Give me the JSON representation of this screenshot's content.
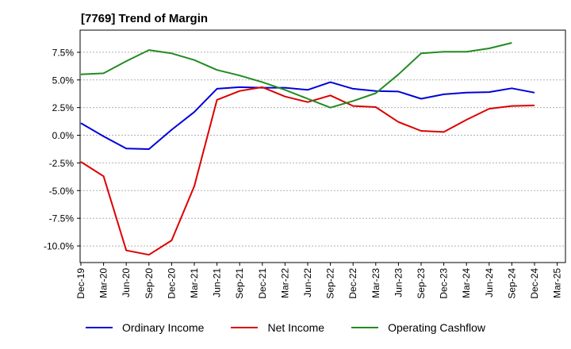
{
  "chart_data": {
    "type": "line",
    "title": "[7769]  Trend of Margin",
    "xlabel": "",
    "ylabel": "",
    "categories": [
      "Dec-19",
      "Mar-20",
      "Jun-20",
      "Sep-20",
      "Dec-20",
      "Mar-21",
      "Jun-21",
      "Sep-21",
      "Dec-21",
      "Mar-22",
      "Jun-22",
      "Sep-22",
      "Dec-22",
      "Mar-23",
      "Jun-23",
      "Sep-23",
      "Dec-23",
      "Mar-24",
      "Jun-24",
      "Sep-24",
      "Dec-24",
      "Mar-25"
    ],
    "ylim": [
      -11.5,
      9.5
    ],
    "yticks": [
      -10.0,
      -7.5,
      -5.0,
      -2.5,
      0.0,
      2.5,
      5.0,
      7.5
    ],
    "ytick_labels": [
      "-10.0%",
      "-7.5%",
      "-5.0%",
      "-2.5%",
      "0.0%",
      "2.5%",
      "5.0%",
      "7.5%"
    ],
    "grid": true,
    "legend_position": "bottom",
    "series": [
      {
        "name": "Ordinary Income",
        "color": "#0000dd",
        "values": [
          1.1,
          -0.1,
          -1.2,
          -1.25,
          0.5,
          2.1,
          4.2,
          4.35,
          4.3,
          4.3,
          4.1,
          4.8,
          4.2,
          4.0,
          3.95,
          3.3,
          3.7,
          3.85,
          3.9,
          4.25,
          3.85,
          null
        ]
      },
      {
        "name": "Net Income",
        "color": "#dd0000",
        "values": [
          -2.4,
          -3.7,
          -10.4,
          -10.8,
          -9.5,
          -4.6,
          3.2,
          4.0,
          4.35,
          3.5,
          3.0,
          3.6,
          2.65,
          2.55,
          1.2,
          0.4,
          0.3,
          1.4,
          2.4,
          2.65,
          2.7,
          null
        ]
      },
      {
        "name": "Operating Cashflow",
        "color": "#228b22",
        "values": [
          5.5,
          5.6,
          6.7,
          7.7,
          7.4,
          6.8,
          5.9,
          5.4,
          4.8,
          4.1,
          3.3,
          2.5,
          3.1,
          3.8,
          5.5,
          7.4,
          7.55,
          7.55,
          7.85,
          8.35,
          null,
          null
        ]
      }
    ]
  }
}
